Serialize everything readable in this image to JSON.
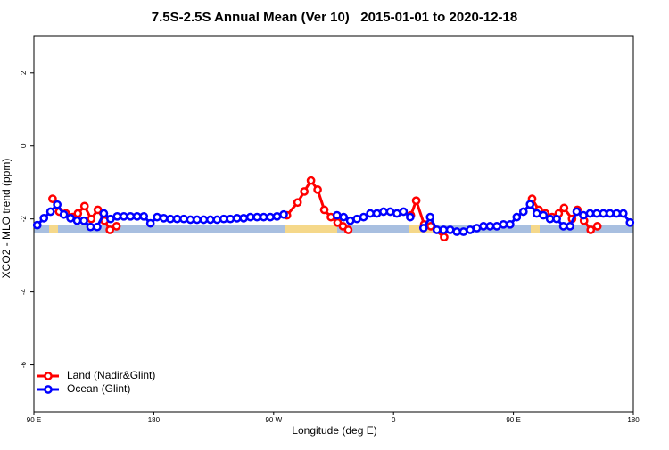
{
  "chart_data": {
    "type": "line",
    "title": "7.5S-2.5S Annual Mean (Ver 10)   2015-01-01 to 2020-12-18",
    "xlabel": "Longitude (deg E)",
    "ylabel": "XCO2 - MLO trend (ppm)",
    "xlim": [
      90,
      540
    ],
    "ylim": [
      -7.28,
      3.02
    ],
    "xticks": [
      {
        "value": 90,
        "label": "90 E"
      },
      180,
      {
        "value": 270,
        "label": "90 W"
      },
      {
        "value": 360,
        "label": "0"
      },
      {
        "value": 450,
        "label": "90 E"
      },
      {
        "value": 540,
        "label": "180"
      }
    ],
    "yticks": [
      -6,
      -4,
      -2,
      0,
      2
    ],
    "legend": "bottom-left",
    "series": [
      {
        "name": "Land (Nadir&Glint)",
        "color": "#ff0000",
        "x": [
          104,
          109,
          114,
          119,
          123,
          128,
          133,
          138,
          143,
          147,
          152,
          200,
          280,
          288,
          293,
          298,
          303,
          308,
          313,
          318,
          322,
          326,
          350,
          373,
          377,
          383,
          388,
          398,
          430,
          464,
          469,
          474,
          479,
          484,
          488,
          494,
          498,
          503,
          508,
          513
        ],
        "values": [
          -1.45,
          -1.8,
          -1.85,
          -1.95,
          -1.85,
          -1.65,
          -2.0,
          -1.75,
          -2.05,
          -2.3,
          -2.2,
          null,
          -1.9,
          -1.55,
          -1.25,
          -0.95,
          -1.2,
          -1.75,
          -1.95,
          -2.1,
          -2.2,
          -2.3,
          null,
          -1.9,
          -1.5,
          -2.15,
          -2.2,
          -2.5,
          null,
          -1.45,
          -1.75,
          -1.85,
          -1.95,
          -1.85,
          -1.7,
          -2.0,
          -1.75,
          -2.05,
          -2.3,
          -2.2
        ]
      },
      {
        "name": "Ocean (Glint)",
        "color": "#0000ff",
        "x": [
          92.5,
          97.5,
          102.5,
          107.5,
          112.5,
          117.5,
          122.5,
          127.5,
          132.5,
          137.5,
          142.5,
          147.5,
          152.5,
          157.5,
          162.5,
          167.5,
          172.5,
          177.5,
          182.5,
          187.5,
          192.5,
          197.5,
          202.5,
          207.5,
          212.5,
          217.5,
          222.5,
          227.5,
          232.5,
          237.5,
          242.5,
          247.5,
          252.5,
          257.5,
          262.5,
          267.5,
          272.5,
          277.5,
          297.5,
          317.5,
          322.5,
          327.5,
          332.5,
          337.5,
          342.5,
          347.5,
          352.5,
          357.5,
          362.5,
          367.5,
          372.5,
          377.5,
          382.5,
          387.5,
          392.5,
          397.5,
          402.5,
          407.5,
          412.5,
          417.5,
          422.5,
          427.5,
          432.5,
          437.5,
          442.5,
          447.5,
          452.5,
          457.5,
          462.5,
          467.5,
          472.5,
          477.5,
          482.5,
          487.5,
          492.5,
          497.5,
          502.5,
          507.5,
          512.5,
          517.5,
          522.5,
          527.5,
          532.5,
          537.5
        ],
        "values": [
          -2.17,
          -1.98,
          -1.8,
          -1.61,
          -1.88,
          -1.98,
          -2.05,
          -2.05,
          -2.22,
          -2.22,
          -1.85,
          -2.0,
          -1.93,
          -1.93,
          -1.93,
          -1.93,
          -1.93,
          -2.12,
          -1.95,
          -1.98,
          -2.0,
          -2.0,
          -2.0,
          -2.02,
          -2.02,
          -2.02,
          -2.02,
          -2.02,
          -2.0,
          -2.0,
          -1.98,
          -1.98,
          -1.95,
          -1.95,
          -1.95,
          -1.95,
          -1.93,
          -1.88,
          null,
          -1.9,
          -1.95,
          -2.05,
          -2.0,
          -1.95,
          -1.85,
          -1.85,
          -1.8,
          -1.8,
          -1.85,
          -1.8,
          -1.95,
          null,
          -2.25,
          -1.95,
          -2.3,
          -2.3,
          -2.3,
          -2.35,
          -2.35,
          -2.3,
          -2.25,
          -2.2,
          -2.2,
          -2.2,
          -2.15,
          -2.15,
          -1.95,
          -1.8,
          -1.6,
          -1.85,
          -1.9,
          -2.0,
          -2.0,
          -2.2,
          -2.2,
          -1.8,
          -1.9,
          -1.85,
          -1.85,
          -1.85,
          -1.85,
          -1.85,
          -1.85,
          -2.1
        ]
      }
    ]
  }
}
